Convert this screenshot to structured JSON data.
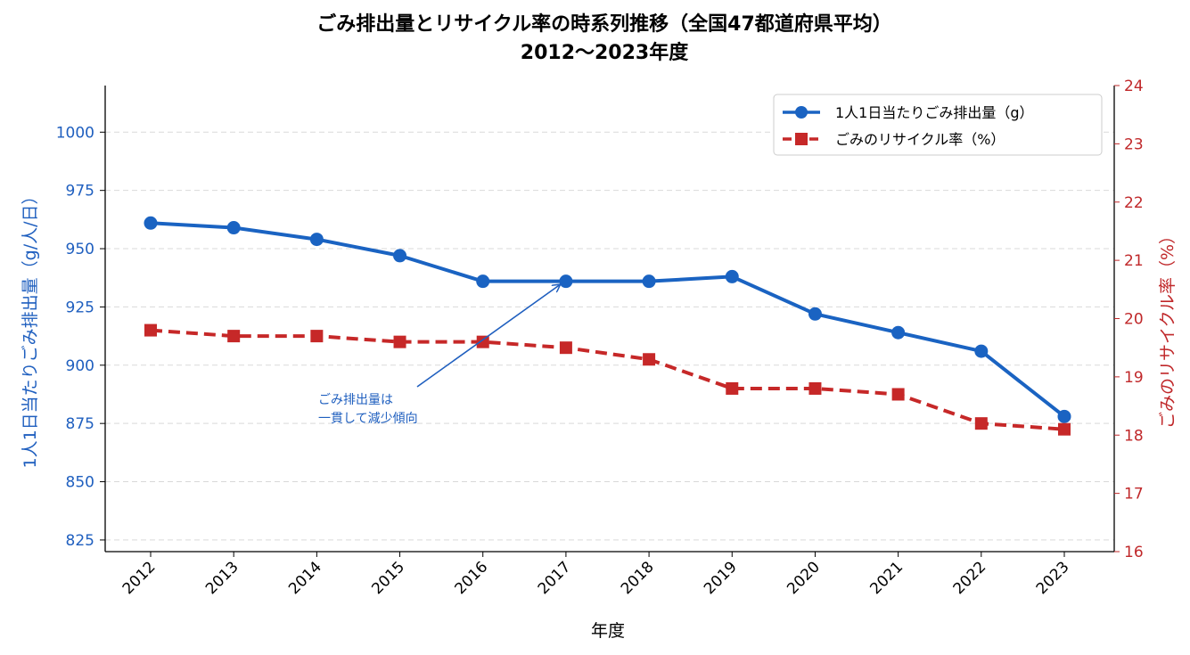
{
  "chart_data": {
    "type": "line",
    "title_line1": "ごみ排出量とリサイクル率の時系列推移（全国47都道府県平均）",
    "title_line2": "2012〜2023年度",
    "xlabel": "年度",
    "ylabel_left": "1人1日当たりごみ排出量（g/人/日）",
    "ylabel_right": "ごみのリサイクル率（%）",
    "categories": [
      "2012",
      "2013",
      "2014",
      "2015",
      "2016",
      "2017",
      "2018",
      "2019",
      "2020",
      "2021",
      "2022",
      "2023"
    ],
    "ylim_left": [
      820,
      1020
    ],
    "yticks_left": [
      825,
      850,
      875,
      900,
      925,
      950,
      975,
      1000
    ],
    "ylim_right": [
      16,
      24
    ],
    "yticks_right": [
      16,
      17,
      18,
      19,
      20,
      21,
      22,
      23,
      24
    ],
    "grid": "horizontal-dashed",
    "legend_position": "top-right",
    "series": [
      {
        "name": "1人1日当たりごみ排出量（g）",
        "axis": "left",
        "color": "#1a63c2",
        "marker": "circle",
        "style": "solid",
        "values": [
          961,
          959,
          954,
          947,
          936,
          936,
          936,
          938,
          922,
          914,
          906,
          878
        ]
      },
      {
        "name": "ごみのリサイクル率（%）",
        "axis": "right",
        "color": "#c62828",
        "marker": "square",
        "style": "dashed",
        "values": [
          19.8,
          19.7,
          19.7,
          19.6,
          19.6,
          19.5,
          19.3,
          18.8,
          18.8,
          18.7,
          18.2,
          18.1
        ]
      }
    ],
    "annotation": {
      "line1": "ごみ排出量は",
      "line2": "一貫して減少傾向",
      "target_category": "2017",
      "target_value": 936
    }
  }
}
